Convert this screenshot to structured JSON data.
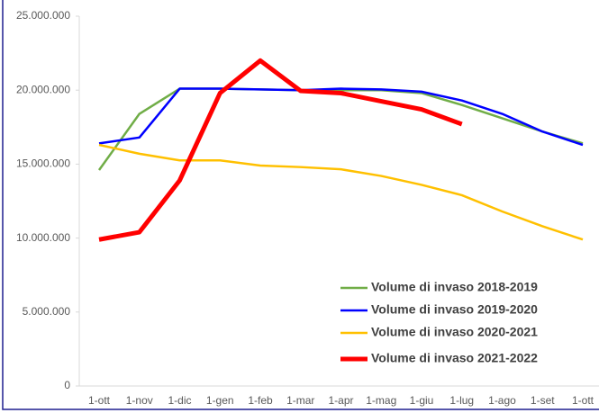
{
  "chart_data": {
    "type": "line",
    "categories": [
      "1-ott",
      "1-nov",
      "1-dic",
      "1-gen",
      "1-feb",
      "1-mar",
      "1-apr",
      "1-mag",
      "1-giu",
      "1-lug",
      "1-ago",
      "1-set",
      "1-ott"
    ],
    "series": [
      {
        "name": "Volume di invaso 2018-2019",
        "color": "#70ad47",
        "width": 2.5,
        "values": [
          14600000,
          18400000,
          20100000,
          20100000,
          20050000,
          20000000,
          20000000,
          20000000,
          19800000,
          19000000,
          18100000,
          17200000,
          16400000
        ]
      },
      {
        "name": "Volume di invaso 2019-2020",
        "color": "#0000ff",
        "width": 2.5,
        "values": [
          16400000,
          16800000,
          20100000,
          20100000,
          20050000,
          20000000,
          20100000,
          20050000,
          19900000,
          19300000,
          18400000,
          17200000,
          16300000
        ]
      },
      {
        "name": "Volume di invaso 2020-2021",
        "color": "#ffc000",
        "width": 2.5,
        "values": [
          16300000,
          15700000,
          15250000,
          15250000,
          14900000,
          14800000,
          14650000,
          14200000,
          13600000,
          12900000,
          11800000,
          10800000,
          9900000
        ]
      },
      {
        "name": "Volume di invaso 2021-2022",
        "color": "#ff0000",
        "width": 5,
        "values": [
          9900000,
          10400000,
          13900000,
          19800000,
          22000000,
          19950000,
          19800000,
          19250000,
          18700000,
          17700000,
          null,
          null,
          null
        ]
      }
    ],
    "ylim": [
      0,
      25000000
    ],
    "yticks": [
      0,
      {
        "value": 5000000,
        "label": "5.000.000"
      },
      {
        "value": 10000000,
        "label": "10.000.000"
      },
      {
        "value": 15000000,
        "label": "15.000.000"
      },
      {
        "value": 20000000,
        "label": "20.000.000"
      },
      {
        "value": 25000000,
        "label": "25.000.000"
      }
    ],
    "grid": false,
    "legend": "lower right"
  }
}
